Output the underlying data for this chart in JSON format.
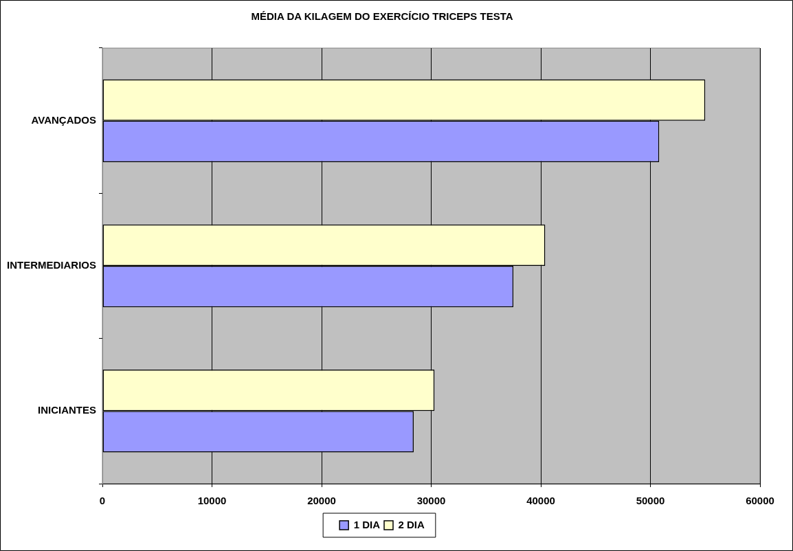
{
  "chart_data": {
    "type": "bar",
    "orientation": "horizontal",
    "title": "MÉDIA DA KILAGEM DO EXERCÍCIO TRICEPS TESTA",
    "categories": [
      "AVANÇADOS",
      "INTERMEDIARIOS",
      "INICIANTES"
    ],
    "series": [
      {
        "name": "1 DIA",
        "color": "#9999ff",
        "values": [
          50800,
          37500,
          28400
        ]
      },
      {
        "name": "2 DIA",
        "color": "#ffffcc",
        "values": [
          55000,
          40400,
          30300
        ]
      }
    ],
    "xlim": [
      0,
      60000
    ],
    "xticks": [
      0,
      10000,
      20000,
      30000,
      40000,
      50000,
      60000
    ],
    "grid": "x",
    "legend": "bottom"
  }
}
